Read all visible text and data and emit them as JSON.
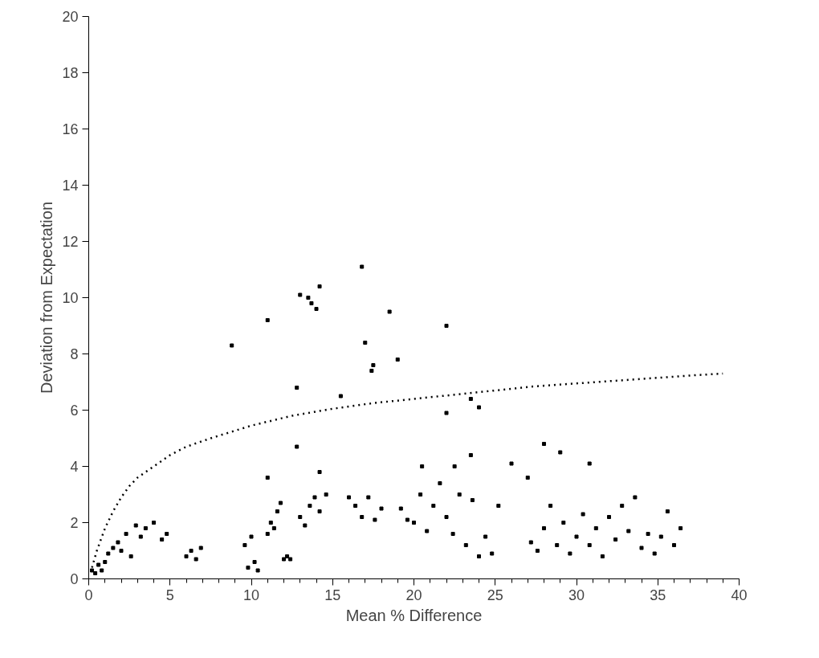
{
  "chart_data": {
    "type": "scatter",
    "xlabel": "Mean % Difference",
    "ylabel": "Deviation from Expectation",
    "xlim": [
      0,
      40
    ],
    "ylim": [
      0,
      20
    ],
    "xticks": [
      0,
      5,
      10,
      15,
      20,
      25,
      30,
      35,
      40
    ],
    "yticks": [
      0,
      2,
      4,
      6,
      8,
      10,
      12,
      14,
      16,
      18,
      20
    ],
    "grid": false,
    "series": [
      {
        "marker": "square",
        "color": "#000000",
        "x": [
          0.2,
          0.4,
          0.6,
          0.8,
          1.0,
          1.2,
          1.5,
          1.8,
          2.0,
          2.3,
          2.6,
          2.9,
          3.2,
          3.5,
          4.0,
          4.5,
          4.8,
          6.0,
          6.3,
          6.6,
          6.9,
          9.6,
          9.8,
          10.0,
          10.2,
          10.4,
          11.0,
          11.2,
          11.4,
          11.6,
          11.8,
          12.0,
          12.2,
          12.4,
          13.0,
          13.3,
          13.6,
          13.9,
          14.2,
          14.6,
          16.0,
          16.4,
          16.8,
          17.2,
          17.6,
          18.0,
          19.2,
          19.6,
          20.0,
          20.4,
          20.8,
          21.2,
          21.6,
          22.0,
          22.4,
          22.8,
          23.2,
          23.6,
          24.0,
          24.4,
          24.8,
          25.2,
          27.2,
          27.6,
          28.0,
          28.4,
          28.8,
          29.2,
          29.6,
          30.0,
          30.4,
          30.8,
          31.2,
          31.6,
          32.0,
          32.4,
          32.8,
          33.2,
          33.6,
          34.0,
          34.4,
          34.8,
          35.2,
          35.6,
          36.0,
          36.4,
          8.8,
          11.0,
          12.8,
          13.0,
          13.5,
          13.7,
          14.0,
          14.2,
          16.8,
          17.0,
          17.4,
          17.5,
          18.5,
          19.0,
          22.0,
          22.0,
          15.5,
          24.0,
          23.5,
          12.8,
          14.2,
          11.0,
          28.0,
          29.0,
          30.8,
          26.0,
          23.5,
          20.5,
          22.5,
          27.0
        ],
        "values": [
          0.3,
          0.2,
          0.5,
          0.3,
          0.6,
          0.9,
          1.1,
          1.3,
          1.0,
          1.6,
          0.8,
          1.9,
          1.5,
          1.8,
          2.0,
          1.4,
          1.6,
          0.8,
          1.0,
          0.7,
          1.1,
          1.2,
          0.4,
          1.5,
          0.6,
          0.3,
          1.6,
          2.0,
          1.8,
          2.4,
          2.7,
          0.7,
          0.8,
          0.7,
          2.2,
          1.9,
          2.6,
          2.9,
          2.4,
          3.0,
          2.9,
          2.6,
          2.2,
          2.9,
          2.1,
          2.5,
          2.5,
          2.1,
          2.0,
          3.0,
          1.7,
          2.6,
          3.4,
          2.2,
          1.6,
          3.0,
          1.2,
          2.8,
          0.8,
          1.5,
          0.9,
          2.6,
          1.3,
          1.0,
          1.8,
          2.6,
          1.2,
          2.0,
          0.9,
          1.5,
          2.3,
          1.2,
          1.8,
          0.8,
          2.2,
          1.4,
          2.6,
          1.7,
          2.9,
          1.1,
          1.6,
          0.9,
          1.5,
          2.4,
          1.2,
          1.8,
          8.3,
          9.2,
          6.8,
          10.1,
          10.0,
          9.8,
          9.6,
          10.4,
          11.1,
          8.4,
          7.4,
          7.6,
          9.5,
          7.8,
          9.0,
          5.9,
          6.5,
          6.1,
          6.4,
          4.7,
          3.8,
          3.6,
          4.8,
          4.5,
          4.1,
          4.1,
          4.4,
          4.0,
          4.0,
          3.6
        ]
      },
      {
        "type": "line",
        "line_style": "dotted",
        "color": "#000000",
        "x": [
          0.2,
          0.5,
          1.0,
          1.5,
          2.0,
          2.5,
          3.0,
          4.0,
          5.0,
          6.0,
          7.5,
          10.0,
          12.5,
          15.0,
          17.5,
          20.0,
          22.5,
          25.0,
          27.5,
          30.0,
          32.5,
          35.0,
          37.5,
          39.0
        ],
        "values": [
          0.4,
          1.0,
          1.8,
          2.4,
          2.9,
          3.3,
          3.6,
          4.0,
          4.4,
          4.7,
          5.0,
          5.45,
          5.8,
          6.05,
          6.25,
          6.4,
          6.55,
          6.7,
          6.85,
          6.95,
          7.05,
          7.15,
          7.25,
          7.3
        ]
      }
    ]
  }
}
